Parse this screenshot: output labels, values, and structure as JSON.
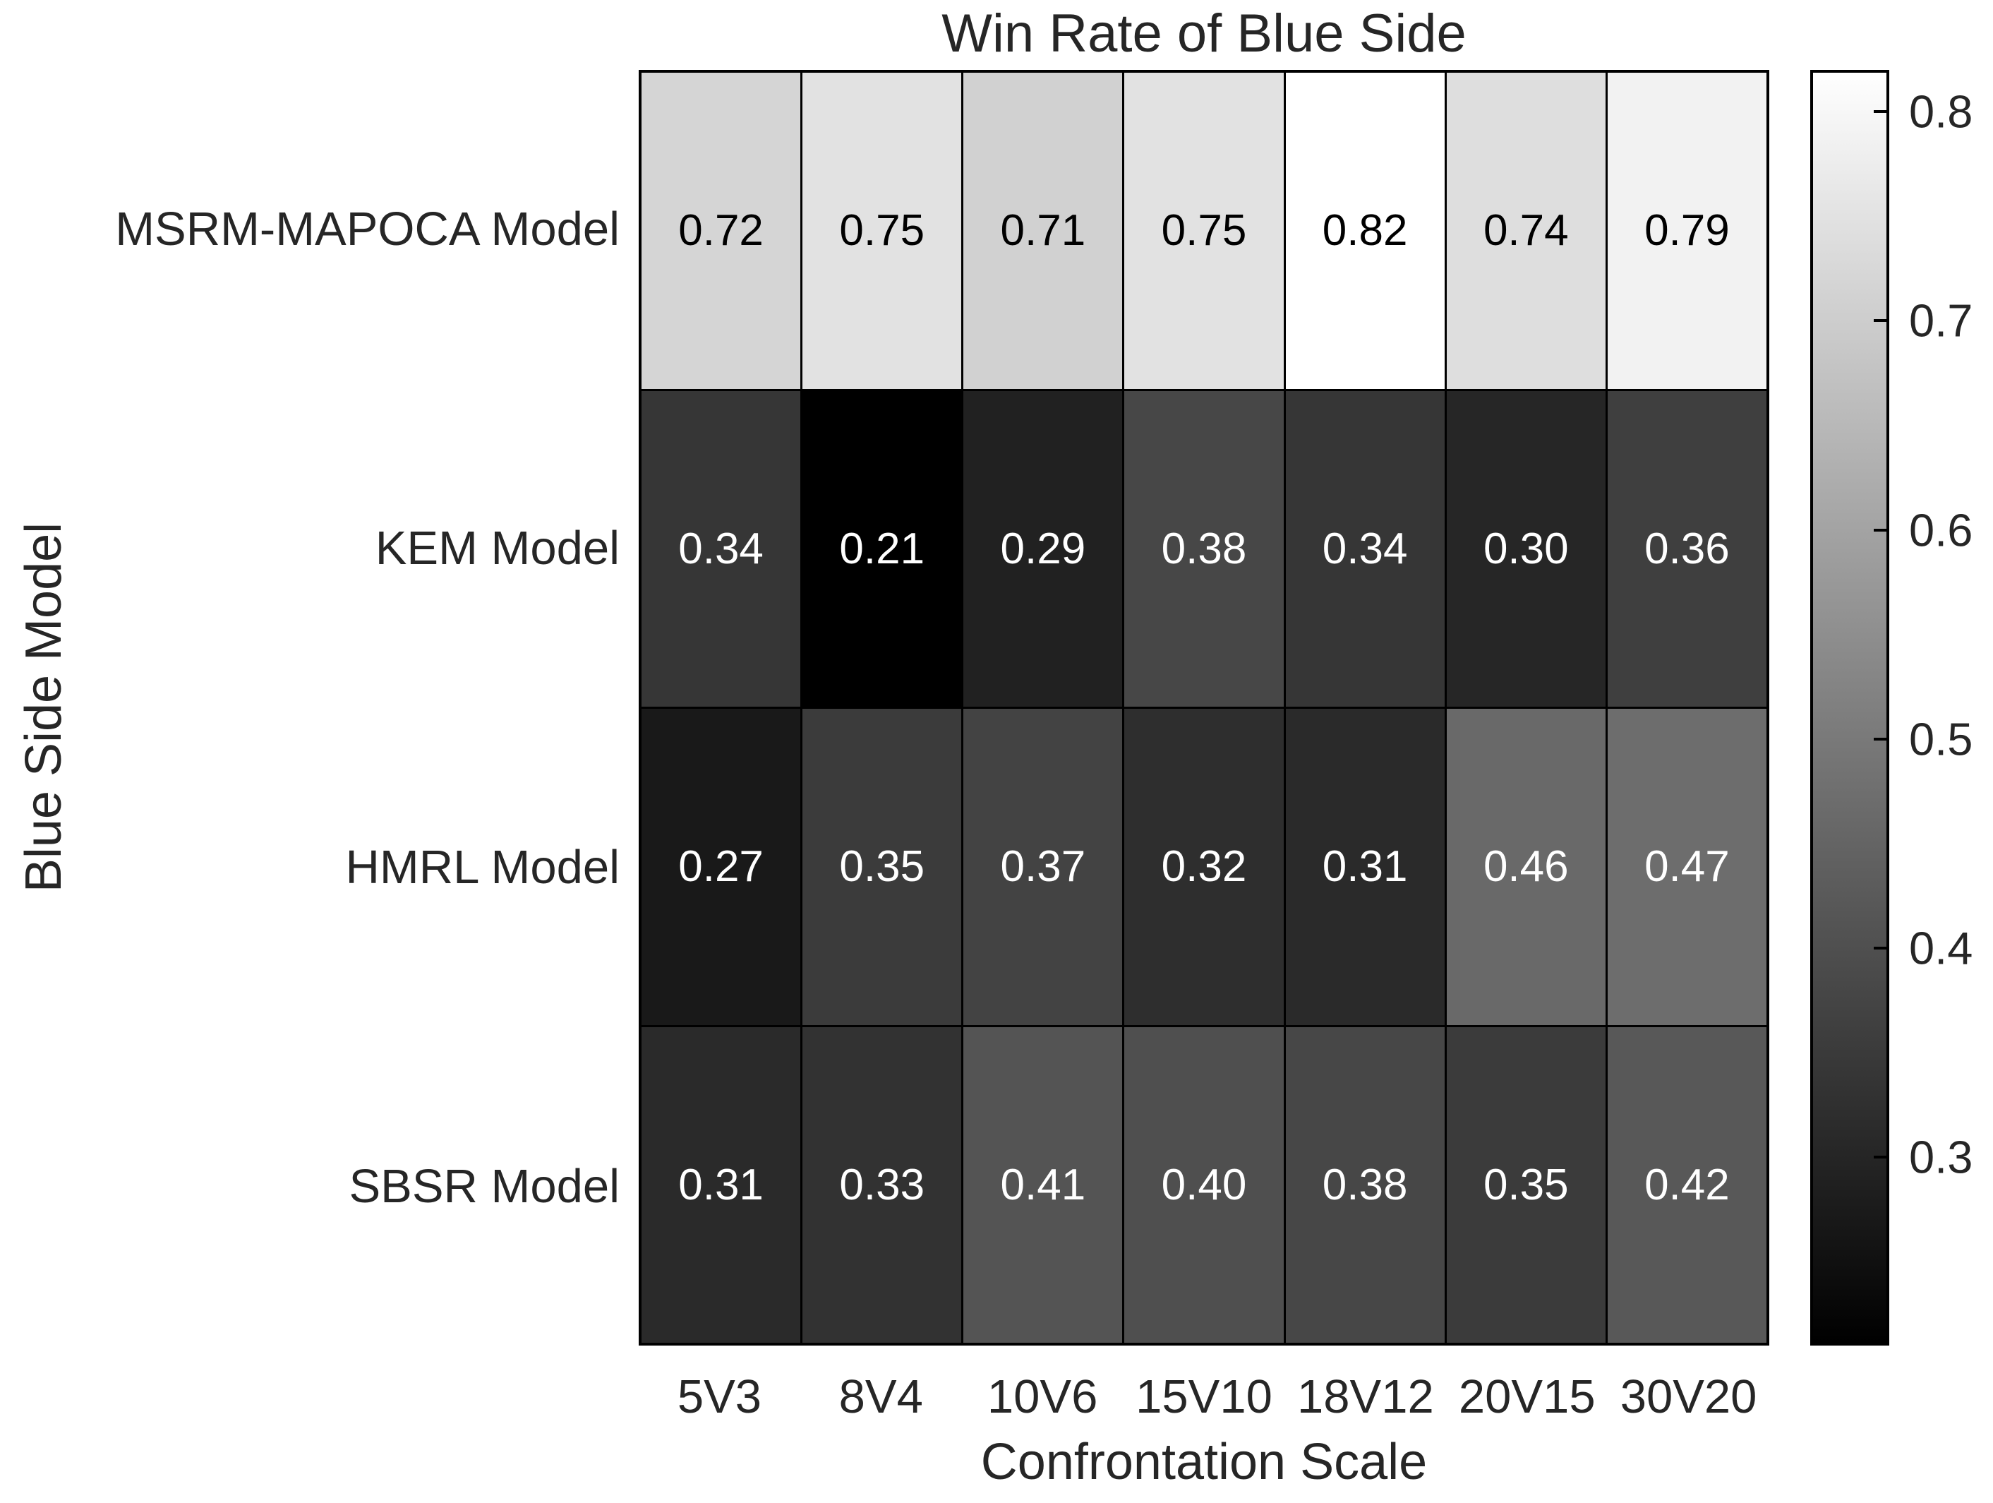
{
  "title": "Win Rate of Blue Side",
  "chart_data": {
    "type": "heatmap",
    "title": "Win Rate of Blue Side",
    "xlabel": "Confrontation Scale",
    "ylabel": "Blue Side Model",
    "categories_x": [
      "5V3",
      "8V4",
      "10V6",
      "15V10",
      "18V12",
      "20V15",
      "30V20"
    ],
    "categories_y": [
      "MSRM-MAPOCA Model",
      "KEM Model",
      "HMRL Model",
      "SBSR Model"
    ],
    "series": [
      {
        "name": "MSRM-MAPOCA Model",
        "values": [
          0.72,
          0.75,
          0.71,
          0.75,
          0.82,
          0.74,
          0.79
        ]
      },
      {
        "name": "KEM Model",
        "values": [
          0.34,
          0.21,
          0.29,
          0.38,
          0.34,
          0.3,
          0.36
        ]
      },
      {
        "name": "HMRL Model",
        "values": [
          0.27,
          0.35,
          0.37,
          0.32,
          0.31,
          0.46,
          0.47
        ]
      },
      {
        "name": "SBSR Model",
        "values": [
          0.31,
          0.33,
          0.41,
          0.4,
          0.38,
          0.35,
          0.42
        ]
      }
    ],
    "value_decimals": 2,
    "colormap": "gray",
    "color_range": [
      0.21,
      0.82
    ],
    "colorbar_ticks": [
      0.8,
      0.7,
      0.6,
      0.5,
      0.4,
      0.3
    ],
    "colorbar_position": "right",
    "grid": true
  },
  "colors": {
    "background": "#ffffff",
    "grid_line": "#000000",
    "axis_text": "#262626",
    "cell_text_dark": "#000000",
    "cell_text_light": "#ffffff",
    "colormap_low": "#000000",
    "colormap_high": "#ffffff"
  }
}
